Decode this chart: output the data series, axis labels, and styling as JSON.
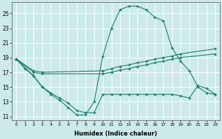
{
  "bg_color": "#cceaea",
  "grid_color": "#ffffff",
  "line_color": "#1a7a6e",
  "xlabel": "Humidex (Indice chaleur)",
  "xlim": [
    -0.5,
    23.5
  ],
  "ylim": [
    10.5,
    26.5
  ],
  "yticks": [
    11,
    13,
    15,
    17,
    19,
    21,
    23,
    25
  ],
  "xticks": [
    0,
    1,
    2,
    3,
    4,
    5,
    6,
    7,
    8,
    9,
    10,
    11,
    12,
    13,
    14,
    15,
    16,
    17,
    18,
    19,
    20,
    21,
    22,
    23
  ],
  "series": [
    {
      "x": [
        0,
        1,
        2,
        3,
        4,
        5,
        6,
        7,
        8,
        9,
        10,
        11,
        12,
        13,
        14,
        15,
        16,
        17,
        18,
        19,
        20,
        21,
        22,
        23
      ],
      "y": [
        18.8,
        17.5,
        16.5,
        15.0,
        14.0,
        13.2,
        12.2,
        11.2,
        11.2,
        13.0,
        19.2,
        23.0,
        25.5,
        26.0,
        26.0,
        25.5,
        24.5,
        24.0,
        20.3,
        18.5,
        17.2,
        15.0,
        14.2,
        14.0
      ]
    },
    {
      "x": [
        0,
        2,
        3,
        10,
        11,
        12,
        13,
        14,
        15,
        16,
        17,
        18,
        19,
        23
      ],
      "y": [
        18.8,
        17.2,
        17.0,
        17.2,
        17.5,
        17.8,
        18.0,
        18.3,
        18.5,
        18.8,
        19.0,
        19.2,
        19.5,
        20.2
      ]
    },
    {
      "x": [
        0,
        2,
        3,
        10,
        11,
        12,
        13,
        14,
        15,
        16,
        17,
        18,
        19,
        23
      ],
      "y": [
        18.8,
        17.0,
        16.8,
        16.8,
        17.0,
        17.3,
        17.5,
        17.8,
        18.0,
        18.3,
        18.5,
        18.8,
        19.0,
        19.5
      ]
    },
    {
      "x": [
        0,
        2,
        3,
        4,
        5,
        6,
        7,
        8,
        9,
        10,
        11,
        12,
        13,
        14,
        15,
        16,
        17,
        18,
        19,
        20,
        21,
        22,
        23
      ],
      "y": [
        18.8,
        16.5,
        15.0,
        14.2,
        13.5,
        12.8,
        11.8,
        11.5,
        11.5,
        14.0,
        14.0,
        14.0,
        14.0,
        14.0,
        14.0,
        14.0,
        14.0,
        14.0,
        13.8,
        13.5,
        15.2,
        14.8,
        14.0
      ]
    }
  ]
}
